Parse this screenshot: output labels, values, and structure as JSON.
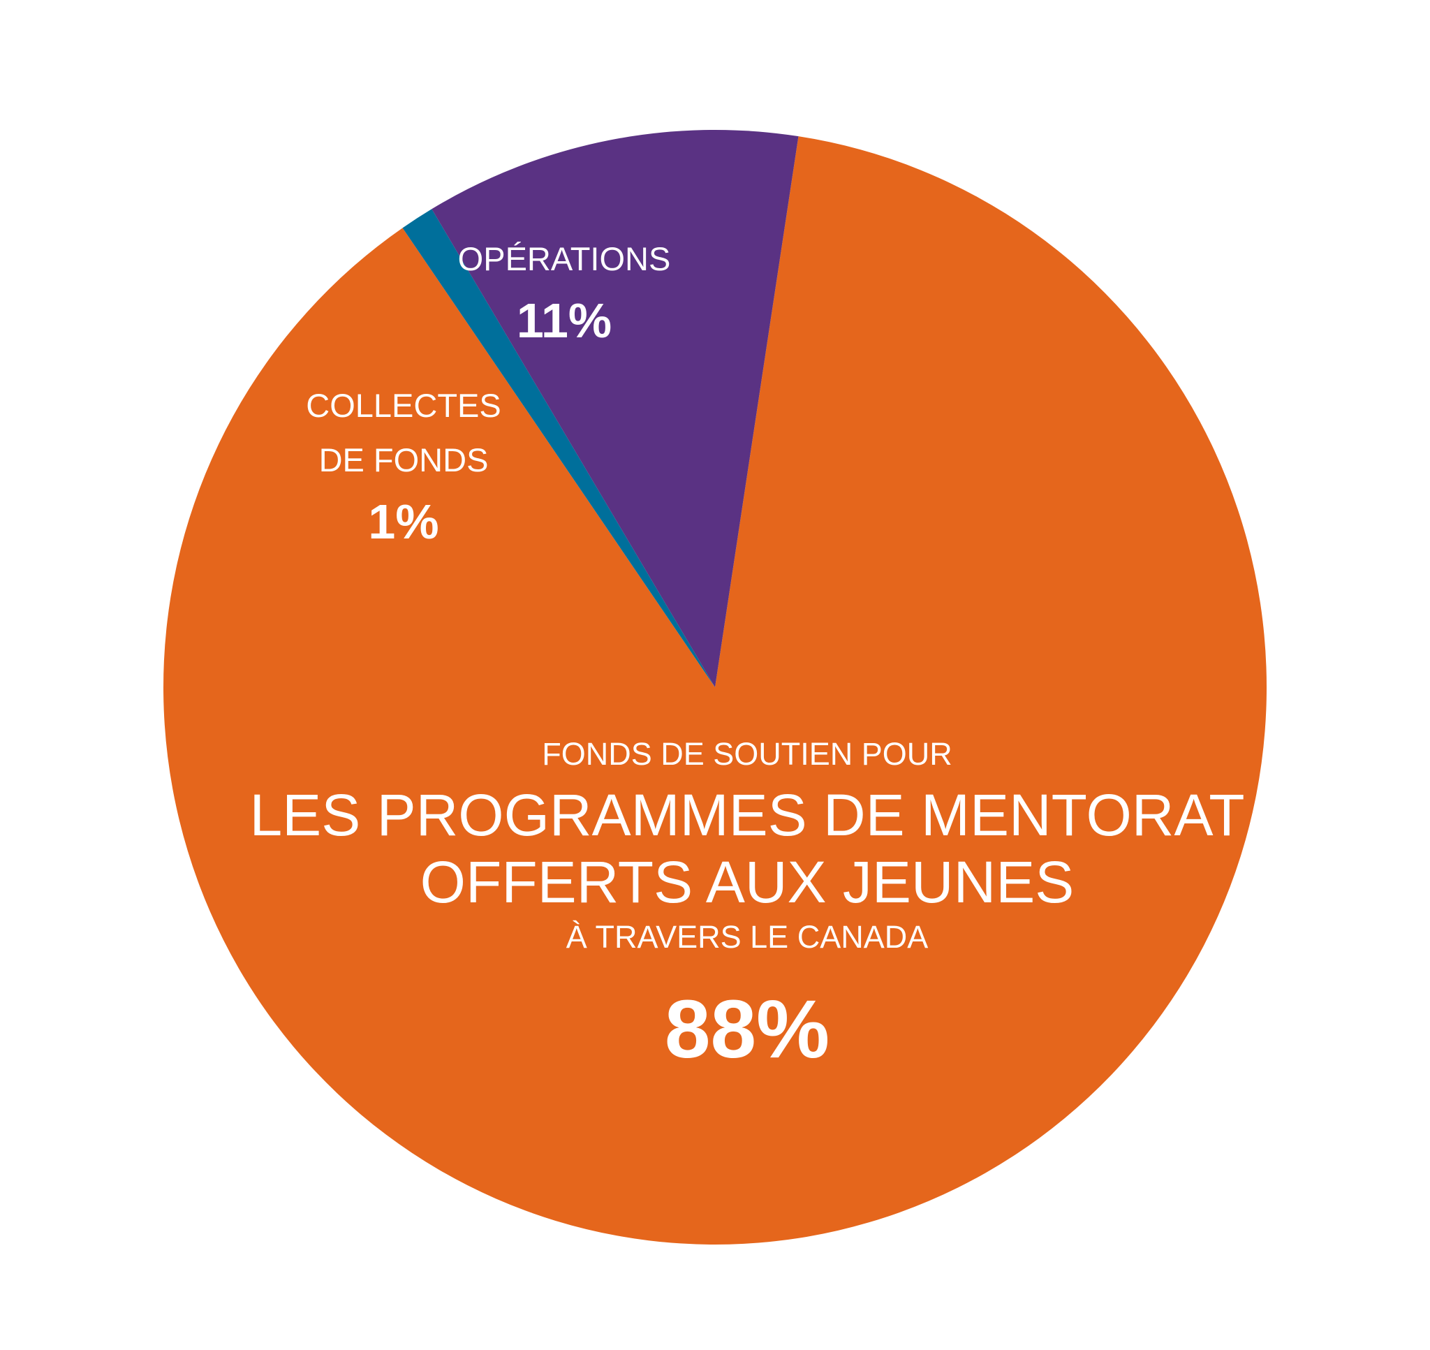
{
  "chart_data": {
    "type": "pie",
    "slices": [
      {
        "id": "programmes",
        "label_lines": [
          "FONDS DE SOUTIEN POUR",
          "LES PROGRAMMES DE MENTORAT",
          "OFFERTS AUX JEUNES",
          "À TRAVERS LE CANADA"
        ],
        "value": 88,
        "percent_label": "88%",
        "color": "#e5661c"
      },
      {
        "id": "collectes",
        "label_lines": [
          "COLLECTES",
          "DE FONDS"
        ],
        "value": 1,
        "percent_label": "1%",
        "color": "#006f9b"
      },
      {
        "id": "operations",
        "label_lines": [
          "OPÉRATIONS"
        ],
        "value": 11,
        "percent_label": "11%",
        "color": "#5a3283"
      }
    ]
  }
}
